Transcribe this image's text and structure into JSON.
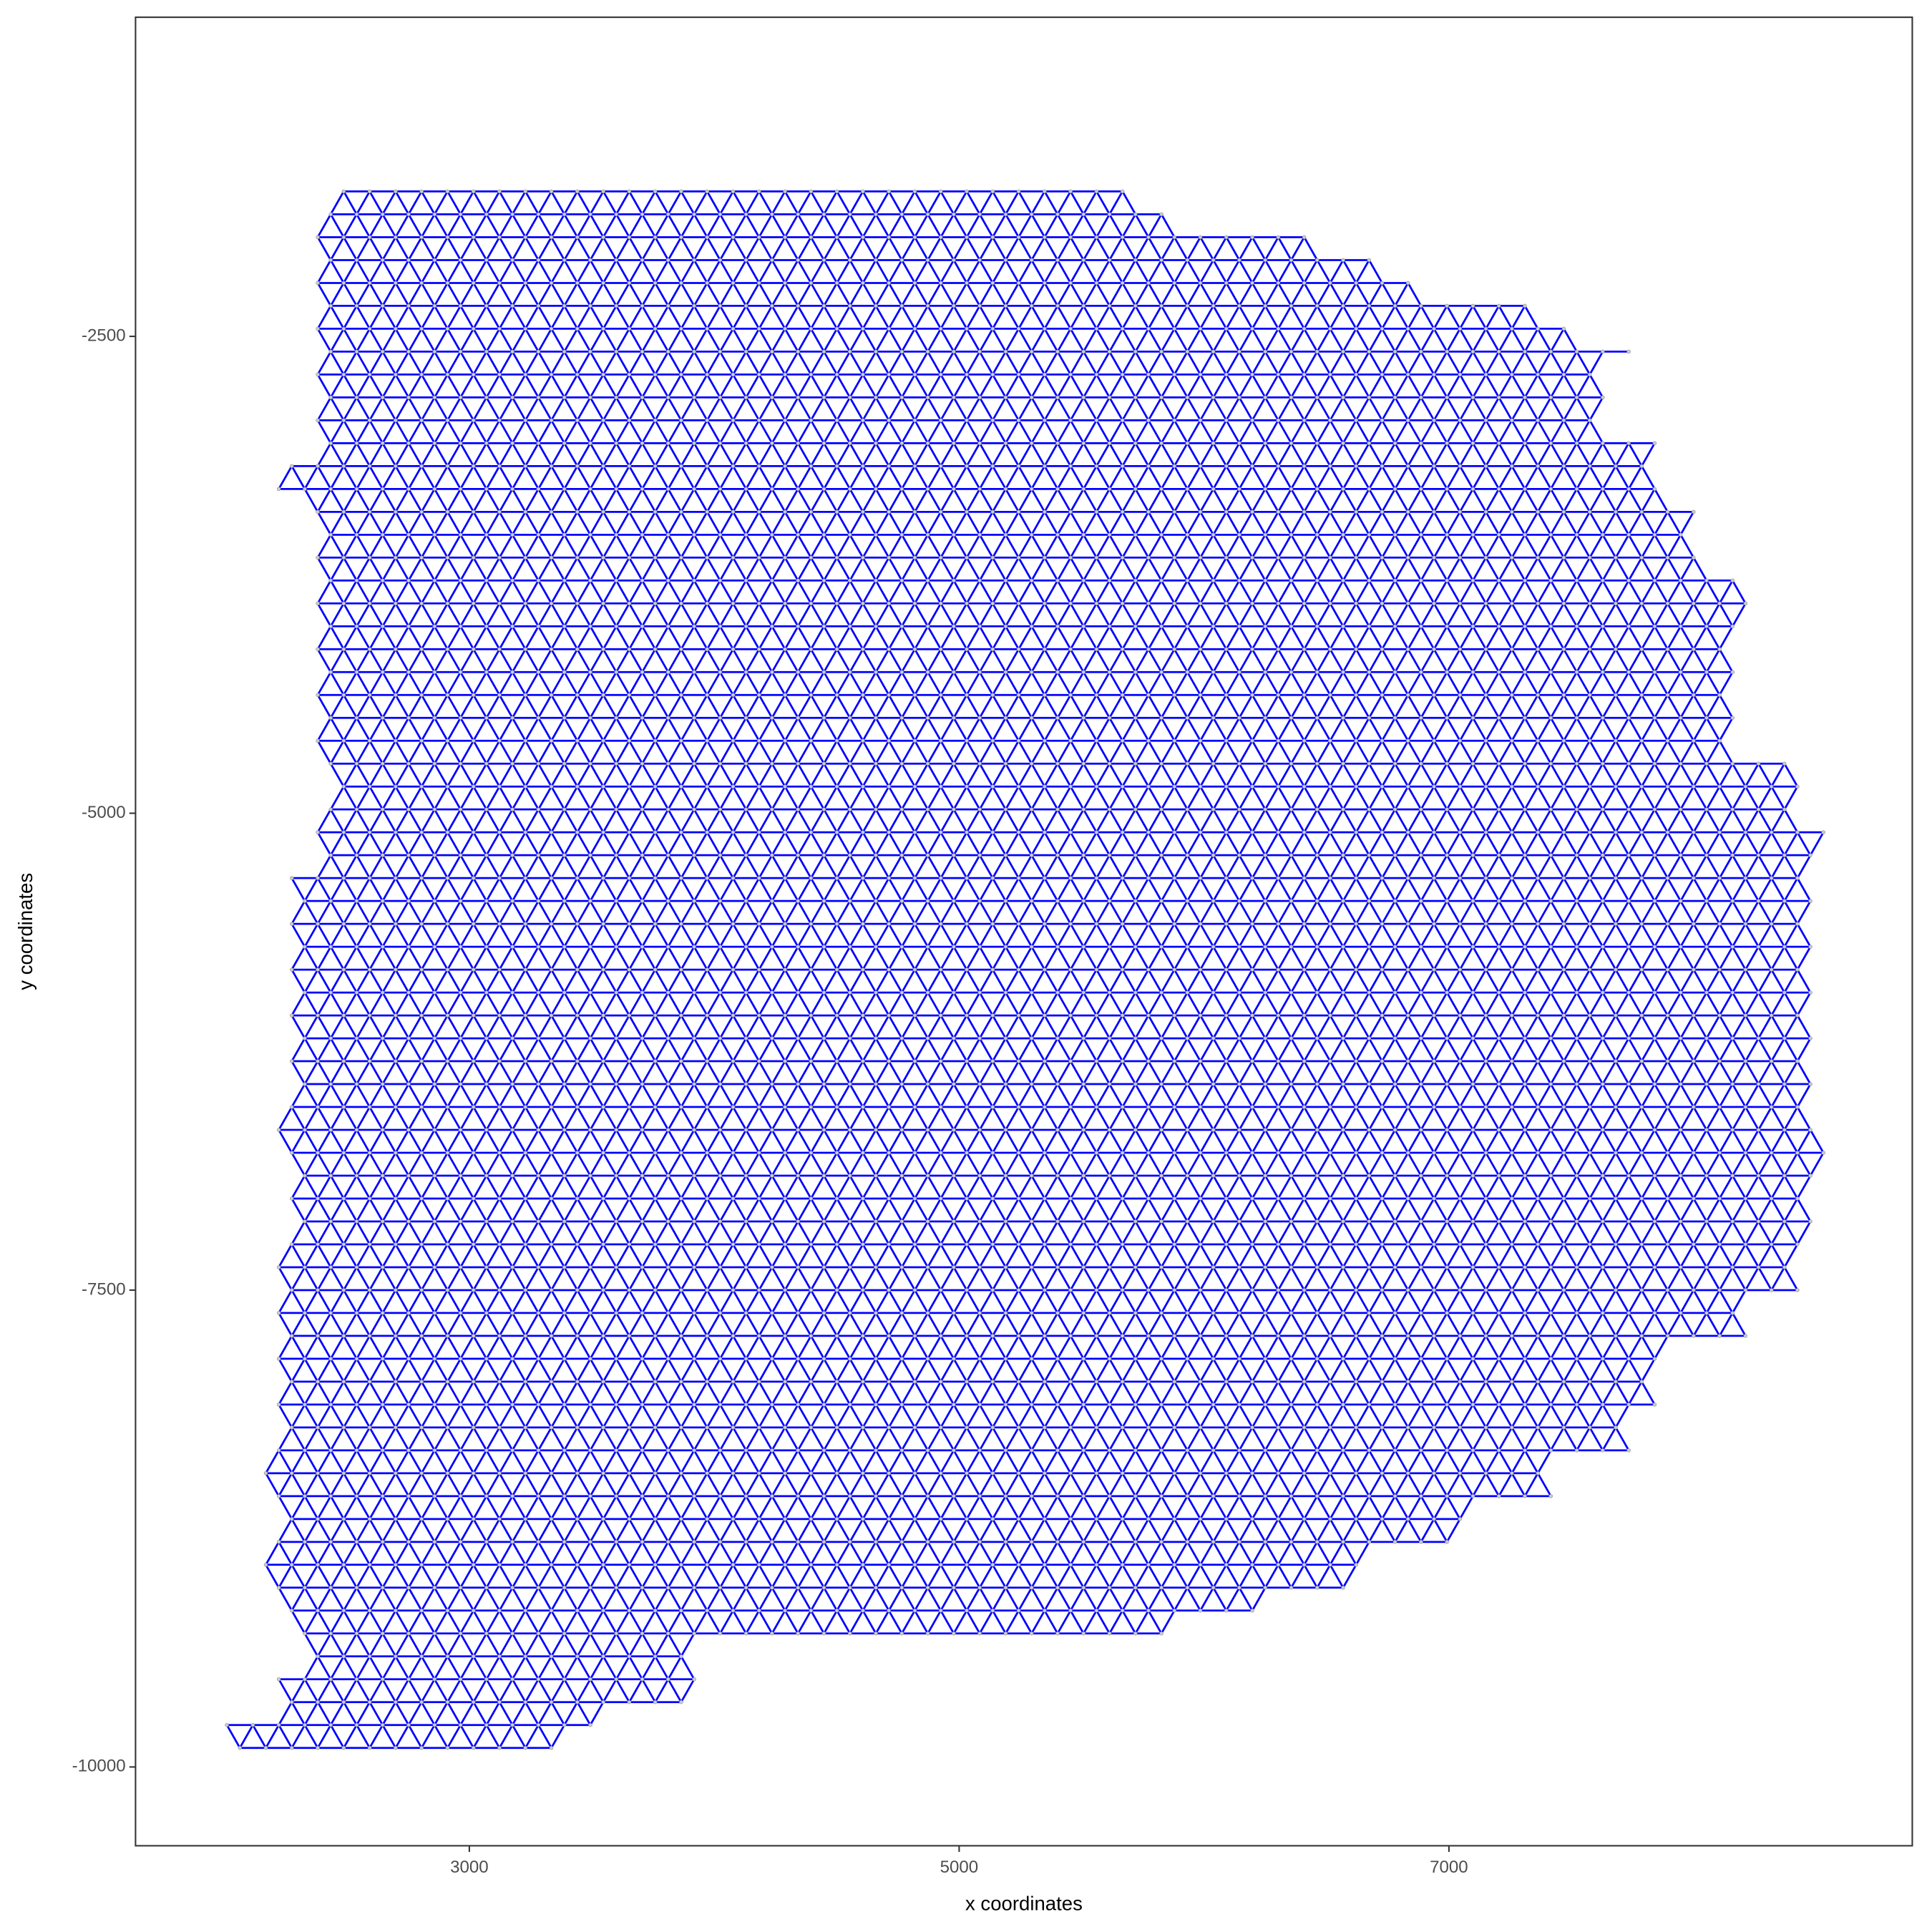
{
  "chart_data": {
    "type": "network",
    "x_label": "x coordinates",
    "y_label": "y coordinates",
    "xlim": [
      1637,
      8892
    ],
    "ylim": [
      -10413,
      -827
    ],
    "xticks": [
      3000,
      5000,
      7000
    ],
    "yticks": [
      -2500,
      -5000,
      -7500,
      -10000
    ],
    "edge_color": "#0000ff",
    "node_color": "#cccccc",
    "x_step": 106,
    "rows": [
      {
        "y": -1740,
        "x": [
          2487,
          5762
        ]
      },
      {
        "y": -1860,
        "x": [
          2434,
          5913
        ]
      },
      {
        "y": -1980,
        "x": [
          2381,
          6441
        ]
      },
      {
        "y": -2100,
        "x": [
          2434,
          6768
        ]
      },
      {
        "y": -2220,
        "x": [
          2381,
          6869
        ]
      },
      {
        "y": -2340,
        "x": [
          2434,
          7322
        ]
      },
      {
        "y": -2460,
        "x": [
          2381,
          7548
        ]
      },
      {
        "y": -2580,
        "x": [
          2434,
          7734
        ]
      },
      {
        "y": -2700,
        "x": [
          2381,
          7674
        ]
      },
      {
        "y": -2820,
        "x": [
          2434,
          7674
        ]
      },
      {
        "y": -2940,
        "x": [
          2381,
          7674
        ]
      },
      {
        "y": -3060,
        "x": [
          2434,
          7875
        ]
      },
      {
        "y": -3180,
        "x": [
          2275,
          7875
        ]
      },
      {
        "y": -3300,
        "x": [
          2222,
          7875
        ]
      },
      {
        "y": -3420,
        "x": [
          2381,
          8026
        ]
      },
      {
        "y": -3540,
        "x": [
          2434,
          8026
        ]
      },
      {
        "y": -3660,
        "x": [
          2381,
          8100
        ]
      },
      {
        "y": -3780,
        "x": [
          2434,
          8217
        ]
      },
      {
        "y": -3900,
        "x": [
          2381,
          8217
        ]
      },
      {
        "y": -4020,
        "x": [
          2434,
          8167
        ]
      },
      {
        "y": -4140,
        "x": [
          2381,
          8167
        ]
      },
      {
        "y": -4260,
        "x": [
          2434,
          8167
        ]
      },
      {
        "y": -4380,
        "x": [
          2381,
          8167
        ]
      },
      {
        "y": -4500,
        "x": [
          2434,
          8167
        ]
      },
      {
        "y": -4620,
        "x": [
          2381,
          8202
        ]
      },
      {
        "y": -4740,
        "x": [
          2434,
          8438
        ]
      },
      {
        "y": -4860,
        "x": [
          2487,
          8438
        ]
      },
      {
        "y": -4980,
        "x": [
          2434,
          8438
        ]
      },
      {
        "y": -5100,
        "x": [
          2381,
          8564
        ]
      },
      {
        "y": -5220,
        "x": [
          2434,
          8503
        ]
      },
      {
        "y": -5340,
        "x": [
          2275,
          8503
        ]
      },
      {
        "y": -5460,
        "x": [
          2328,
          8503
        ]
      },
      {
        "y": -5580,
        "x": [
          2275,
          8503
        ]
      },
      {
        "y": -5700,
        "x": [
          2328,
          8503
        ]
      },
      {
        "y": -5820,
        "x": [
          2275,
          8478
        ]
      },
      {
        "y": -5940,
        "x": [
          2328,
          8478
        ]
      },
      {
        "y": -6060,
        "x": [
          2275,
          8478
        ]
      },
      {
        "y": -6180,
        "x": [
          2328,
          8478
        ]
      },
      {
        "y": -6300,
        "x": [
          2275,
          8478
        ]
      },
      {
        "y": -6420,
        "x": [
          2328,
          8503
        ]
      },
      {
        "y": -6540,
        "x": [
          2275,
          8503
        ]
      },
      {
        "y": -6660,
        "x": [
          2222,
          8564
        ]
      },
      {
        "y": -6780,
        "x": [
          2275,
          8564
        ]
      },
      {
        "y": -6900,
        "x": [
          2328,
          8503
        ]
      },
      {
        "y": -7020,
        "x": [
          2275,
          8503
        ]
      },
      {
        "y": -7140,
        "x": [
          2328,
          8503
        ]
      },
      {
        "y": -7260,
        "x": [
          2275,
          8428
        ]
      },
      {
        "y": -7380,
        "x": [
          2222,
          8428
        ]
      },
      {
        "y": -7500,
        "x": [
          2275,
          8428
        ]
      },
      {
        "y": -7620,
        "x": [
          2222,
          8227
        ]
      },
      {
        "y": -7740,
        "x": [
          2275,
          8227
        ]
      },
      {
        "y": -7860,
        "x": [
          2222,
          7875
        ]
      },
      {
        "y": -7980,
        "x": [
          2275,
          7875
        ]
      },
      {
        "y": -8100,
        "x": [
          2222,
          7875
        ]
      },
      {
        "y": -8220,
        "x": [
          2275,
          7749
        ]
      },
      {
        "y": -8340,
        "x": [
          2222,
          7749
        ]
      },
      {
        "y": -8460,
        "x": [
          2169,
          7462
        ]
      },
      {
        "y": -8580,
        "x": [
          2222,
          7462
        ]
      },
      {
        "y": -8700,
        "x": [
          2275,
          7045
        ]
      },
      {
        "y": -8820,
        "x": [
          2222,
          7045
        ]
      },
      {
        "y": -8940,
        "x": [
          2169,
          6642
        ]
      },
      {
        "y": -9060,
        "x": [
          2222,
          6642
        ]
      },
      {
        "y": -9180,
        "x": [
          2275,
          6200
        ]
      },
      {
        "y": -9300,
        "x": [
          2328,
          5913
        ]
      },
      {
        "y": -9420,
        "x": [
          2381,
          3900
        ]
      },
      {
        "y": -9540,
        "x": [
          2222,
          3951
        ]
      },
      {
        "y": -9660,
        "x": [
          2275,
          3951
        ]
      },
      {
        "y": -9780,
        "x": [
          2010,
          3599
        ]
      },
      {
        "y": -9900,
        "x": [
          2063,
          3400
        ]
      }
    ]
  }
}
